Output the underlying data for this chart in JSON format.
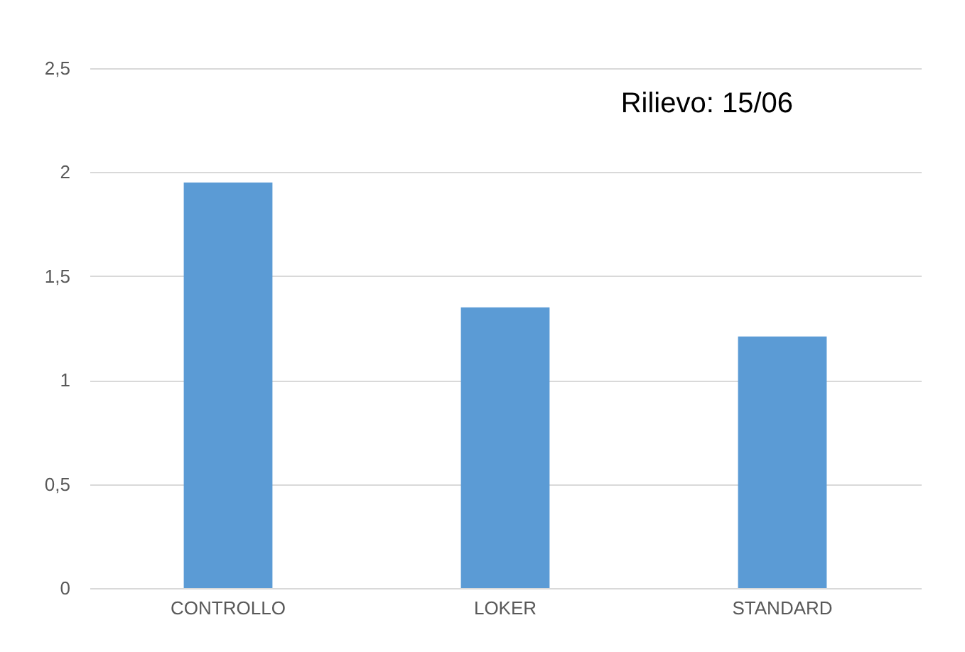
{
  "chart_data": {
    "type": "bar",
    "title": "Rilievo: 15/06",
    "categories": [
      "CONTROLLO",
      "LOKER",
      "STANDARD"
    ],
    "values": [
      1.95,
      1.35,
      1.21
    ],
    "color": "#5b9bd5",
    "ylim": [
      0,
      2.5
    ],
    "yticks": [
      {
        "value": 0,
        "label": "0"
      },
      {
        "value": 0.5,
        "label": "0,5"
      },
      {
        "value": 1,
        "label": "1"
      },
      {
        "value": 1.5,
        "label": "1,5"
      },
      {
        "value": 2,
        "label": "2"
      },
      {
        "value": 2.5,
        "label": "2,5"
      }
    ],
    "grid": "y"
  }
}
